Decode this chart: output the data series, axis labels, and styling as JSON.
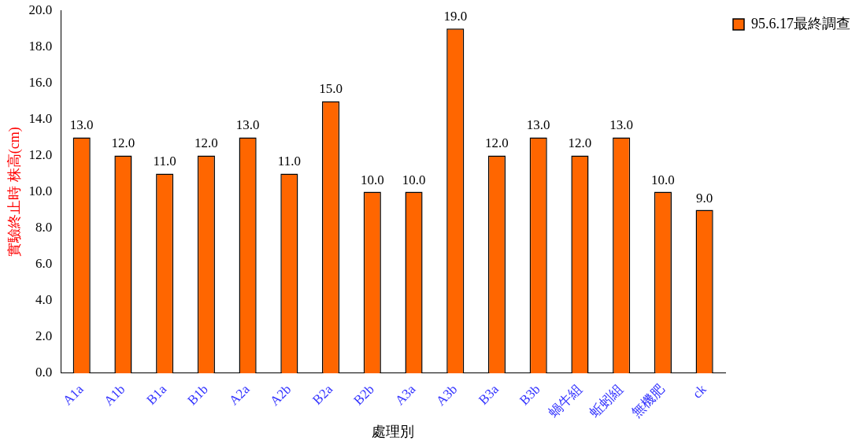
{
  "chart_data": {
    "type": "bar",
    "xlabel": "處理別",
    "ylabel": "實驗終止時 株高(cm)",
    "categories": [
      "A1a",
      "A1b",
      "B1a",
      "B1b",
      "A2a",
      "A2b",
      "B2a",
      "B2b",
      "A3a",
      "A3b",
      "B3a",
      "B3b",
      "蝸牛組",
      "蚯蚓組",
      "無機肥",
      "ck"
    ],
    "series": [
      {
        "name": "95.6.17最終調查",
        "color": "#ff6600",
        "values": [
          13,
          12,
          11,
          12,
          13,
          11,
          15,
          10,
          10,
          19,
          12,
          13,
          12,
          13,
          10,
          9
        ],
        "value_labels": [
          "13.0",
          "12.0",
          "11.0",
          "12.0",
          "13.0",
          "11.0",
          "15.0",
          "10.0",
          "10.0",
          "19.0",
          "12.0",
          "13.0",
          "12.0",
          "13.0",
          "10.0",
          "9.0"
        ]
      }
    ],
    "ylim": [
      0,
      20
    ],
    "yticks": [
      {
        "value": 0,
        "label": "0.0"
      },
      {
        "value": 2,
        "label": "2.0"
      },
      {
        "value": 4,
        "label": "4.0"
      },
      {
        "value": 6,
        "label": "6.0"
      },
      {
        "value": 8,
        "label": "8.0"
      },
      {
        "value": 10,
        "label": "10.0"
      },
      {
        "value": 12,
        "label": "12.0"
      },
      {
        "value": 14,
        "label": "14.0"
      },
      {
        "value": 16,
        "label": "16.0"
      },
      {
        "value": 18,
        "label": "18.0"
      },
      {
        "value": 20,
        "label": "20.0"
      }
    ],
    "grid": false,
    "legend": "right"
  }
}
